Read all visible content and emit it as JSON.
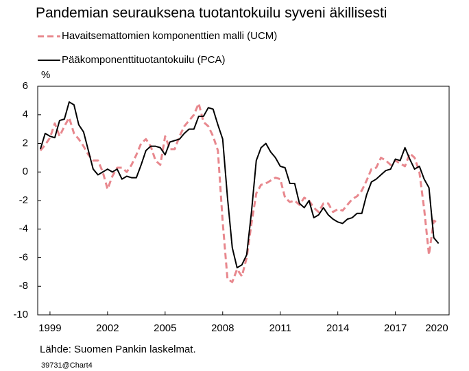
{
  "chart_data": {
    "type": "line",
    "title": "Pandemian seurauksena tuotantokuilu syveni äkillisesti",
    "y_label": "%",
    "source": "Lähde: Suomen Pankin laskelmat.",
    "footer": "39731@Chart4",
    "x": [
      1999,
      1999.25,
      1999.5,
      1999.75,
      2000,
      2000.25,
      2000.5,
      2000.75,
      2001,
      2001.25,
      2001.5,
      2001.75,
      2002,
      2002.25,
      2002.5,
      2002.75,
      2003,
      2003.25,
      2003.5,
      2003.75,
      2004,
      2004.25,
      2004.5,
      2004.75,
      2005,
      2005.25,
      2005.5,
      2005.75,
      2006,
      2006.25,
      2006.5,
      2006.75,
      2007,
      2007.25,
      2007.5,
      2007.75,
      2008,
      2008.25,
      2008.5,
      2008.75,
      2009,
      2009.25,
      2009.5,
      2009.75,
      2010,
      2010.25,
      2010.5,
      2010.75,
      2011,
      2011.25,
      2011.5,
      2011.75,
      2012,
      2012.25,
      2012.5,
      2012.75,
      2013,
      2013.25,
      2013.5,
      2013.75,
      2014,
      2014.25,
      2014.5,
      2014.75,
      2015,
      2015.25,
      2015.5,
      2015.75,
      2016,
      2016.25,
      2016.5,
      2016.75,
      2017,
      2017.25,
      2017.5,
      2017.75,
      2018,
      2018.25,
      2018.5,
      2018.75,
      2019,
      2019.25,
      2019.5,
      2019.75
    ],
    "series": [
      {
        "name": "Havaitsemattomien komponenttien malli (UCM)",
        "color": "#e8888e",
        "dashed": true,
        "values": [
          1.5,
          1.9,
          2.4,
          3.4,
          2.5,
          3.2,
          3.8,
          2.7,
          2.3,
          1.8,
          1.2,
          0.8,
          0.8,
          0.0,
          -1.2,
          -0.3,
          0.3,
          0.3,
          0.0,
          0.5,
          1.2,
          2.0,
          2.3,
          1.8,
          0.8,
          0.5,
          2.5,
          1.6,
          1.6,
          2.5,
          3.2,
          3.6,
          4.0,
          4.8,
          3.5,
          3.2,
          2.5,
          1.5,
          -3.5,
          -7.5,
          -7.7,
          -6.8,
          -7.3,
          -6.0,
          -3.6,
          -1.5,
          -0.9,
          -0.8,
          -0.6,
          -0.4,
          -0.5,
          -1.8,
          -2.1,
          -2.0,
          -2.3,
          -1.8,
          -2.0,
          -2.5,
          -2.8,
          -2.2,
          -2.2,
          -2.8,
          -2.6,
          -2.7,
          -2.3,
          -1.9,
          -1.7,
          -1.3,
          -0.6,
          0.2,
          0.3,
          1.0,
          0.8,
          0.5,
          0.8,
          0.6,
          0.4,
          1.3,
          1.0,
          0.0,
          -2.6,
          -5.8,
          -3.4,
          -3.6
        ]
      },
      {
        "name": "Pääkomponenttituotantokuilu (PCA)",
        "color": "#000000",
        "dashed": false,
        "values": [
          1.6,
          2.7,
          2.5,
          2.4,
          3.6,
          3.7,
          4.9,
          4.7,
          3.3,
          2.8,
          1.5,
          0.2,
          -0.2,
          0.0,
          0.2,
          0.0,
          0.2,
          -0.5,
          -0.3,
          -0.4,
          -0.4,
          0.5,
          1.5,
          1.8,
          1.8,
          1.7,
          1.2,
          2.1,
          2.2,
          2.3,
          2.7,
          3.0,
          3.0,
          3.9,
          3.9,
          4.5,
          4.4,
          3.3,
          2.3,
          -1.8,
          -5.3,
          -6.7,
          -6.5,
          -5.8,
          -2.8,
          0.8,
          1.7,
          2.0,
          1.4,
          1.0,
          0.4,
          0.3,
          -0.8,
          -0.8,
          -2.2,
          -2.5,
          -2.0,
          -3.2,
          -3.0,
          -2.5,
          -3.0,
          -3.3,
          -3.5,
          -3.6,
          -3.3,
          -3.2,
          -2.9,
          -2.9,
          -1.6,
          -0.7,
          -0.5,
          -0.2,
          0.1,
          0.2,
          0.9,
          0.8,
          1.7,
          0.9,
          0.2,
          0.4,
          -0.5,
          -1.1,
          -4.6,
          -5.0
        ]
      }
    ],
    "xlim": [
      1998.86,
      2020.3
    ],
    "xticks": [
      {
        "value": 1999.5,
        "label": "1999"
      },
      {
        "value": 2002.5,
        "label": "2002"
      },
      {
        "value": 2005.5,
        "label": "2005"
      },
      {
        "value": 2008.5,
        "label": "2008"
      },
      {
        "value": 2011.5,
        "label": "2011"
      },
      {
        "value": 2014.5,
        "label": "2014"
      },
      {
        "value": 2017.5,
        "label": "2017"
      },
      {
        "value": 2020.5,
        "label": "2020"
      }
    ],
    "ylim": [
      -10,
      6
    ],
    "yticks": [
      -10,
      -8,
      -6,
      -4,
      -2,
      0,
      2,
      4,
      6
    ],
    "grid": false
  }
}
